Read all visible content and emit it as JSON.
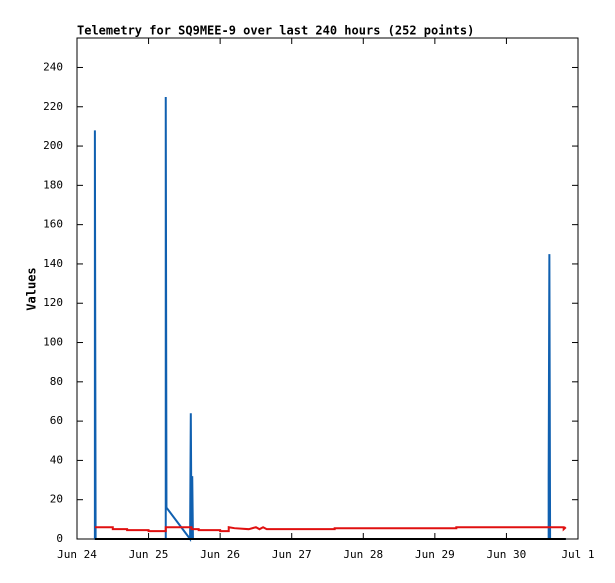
{
  "chart_data": {
    "type": "line",
    "title": "Telemetry for SQ9MEE-9 over last 240 hours (252 points)",
    "y_label": "Values",
    "xlim": [
      0,
      7
    ],
    "xticks": [
      {
        "value": 0,
        "label": "Jun 24"
      },
      {
        "value": 1,
        "label": "Jun 25"
      },
      {
        "value": 2,
        "label": "Jun 26"
      },
      {
        "value": 3,
        "label": "Jun 27"
      },
      {
        "value": 4,
        "label": "Jun 28"
      },
      {
        "value": 5,
        "label": "Jun 29"
      },
      {
        "value": 6,
        "label": "Jun 30"
      },
      {
        "value": 7,
        "label": "Jul 1"
      }
    ],
    "ylim": [
      0,
      255
    ],
    "yticks": [
      0,
      20,
      40,
      60,
      80,
      100,
      120,
      140,
      160,
      180,
      200,
      220,
      240
    ],
    "series": [
      {
        "color": "#1060b0",
        "x": [
          0.25,
          0.25,
          0.26,
          1.24,
          1.24,
          1.25,
          1.58,
          1.59,
          1.6,
          1.61,
          1.62,
          6.59,
          6.59,
          6.6,
          6.61,
          6.83
        ],
        "values": [
          0,
          208,
          0,
          0,
          225,
          16,
          0,
          64,
          0,
          32,
          0,
          0,
          32,
          145,
          0,
          0
        ]
      },
      {
        "color": "#e01010",
        "x": [
          0.25,
          0.5,
          0.5,
          0.7,
          0.7,
          1.0,
          1.0,
          1.24,
          1.24,
          1.6,
          1.6,
          1.7,
          1.7,
          2.0,
          2.0,
          2.12,
          2.12,
          2.2,
          2.4,
          2.5,
          2.55,
          2.6,
          2.65,
          3.6,
          3.6,
          5.3,
          5.3,
          6.8,
          6.8,
          6.83
        ],
        "values": [
          6,
          6,
          5,
          5,
          4.5,
          4.5,
          4,
          4,
          6,
          6,
          5,
          5,
          4.5,
          4.5,
          4,
          4,
          6,
          5.5,
          5,
          6,
          5,
          6,
          5,
          5,
          5.5,
          5.5,
          6,
          6,
          5,
          6
        ]
      },
      {
        "color": "#000000",
        "x": [
          0.25,
          6.83
        ],
        "values": [
          0,
          0
        ]
      }
    ]
  }
}
